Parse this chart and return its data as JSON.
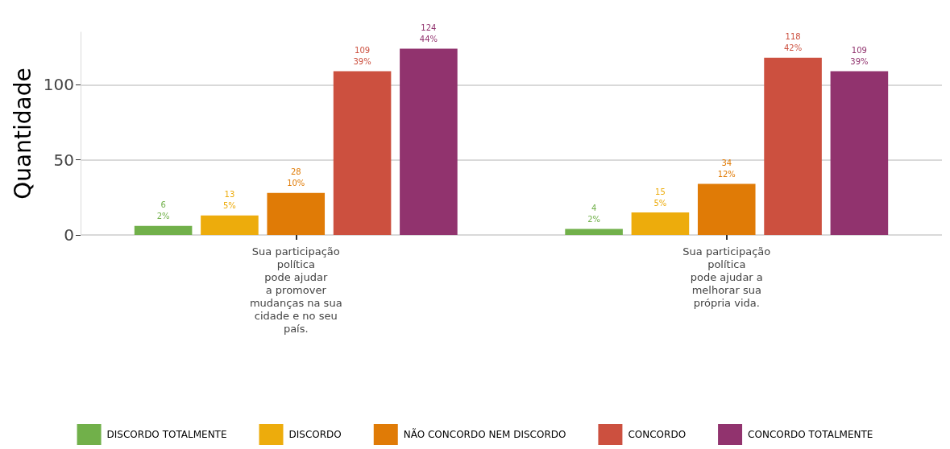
{
  "chart_data": {
    "type": "bar",
    "ylabel": "Quantidade",
    "categories": [
      "Sua participação\npolítica\npode ajudar\na promover\nmudanças na sua\ncidade e no seu\npaís.",
      "Sua participação\npolítica\npode ajudar a\nmelhorar sua\nprópria vida."
    ],
    "series": [
      {
        "name": "DISCORDO TOTALMENTE",
        "color": "#71b04a",
        "values": [
          6,
          4
        ],
        "value_labels": [
          "6\n2%",
          "4\n2%"
        ]
      },
      {
        "name": "DISCORDO",
        "color": "#edac0c",
        "values": [
          13,
          15
        ],
        "value_labels": [
          "13\n5%",
          "15\n5%"
        ]
      },
      {
        "name": "NÃO CONCORDO NEM DISCORDO",
        "color": "#e07b06",
        "values": [
          28,
          34
        ],
        "value_labels": [
          "28\n10%",
          "34\n12%"
        ]
      },
      {
        "name": "CONCORDO",
        "color": "#cc503f",
        "values": [
          109,
          118
        ],
        "value_labels": [
          "109\n39%",
          "118\n42%"
        ]
      },
      {
        "name": "CONCORDO TOTALMENTE",
        "color": "#91336e",
        "values": [
          124,
          109
        ],
        "value_labels": [
          "124\n44%",
          "109\n39%"
        ]
      }
    ],
    "ylim": [
      0,
      135
    ],
    "yticks": [
      0,
      50,
      100
    ],
    "grid": "y",
    "legend": "bottom"
  }
}
